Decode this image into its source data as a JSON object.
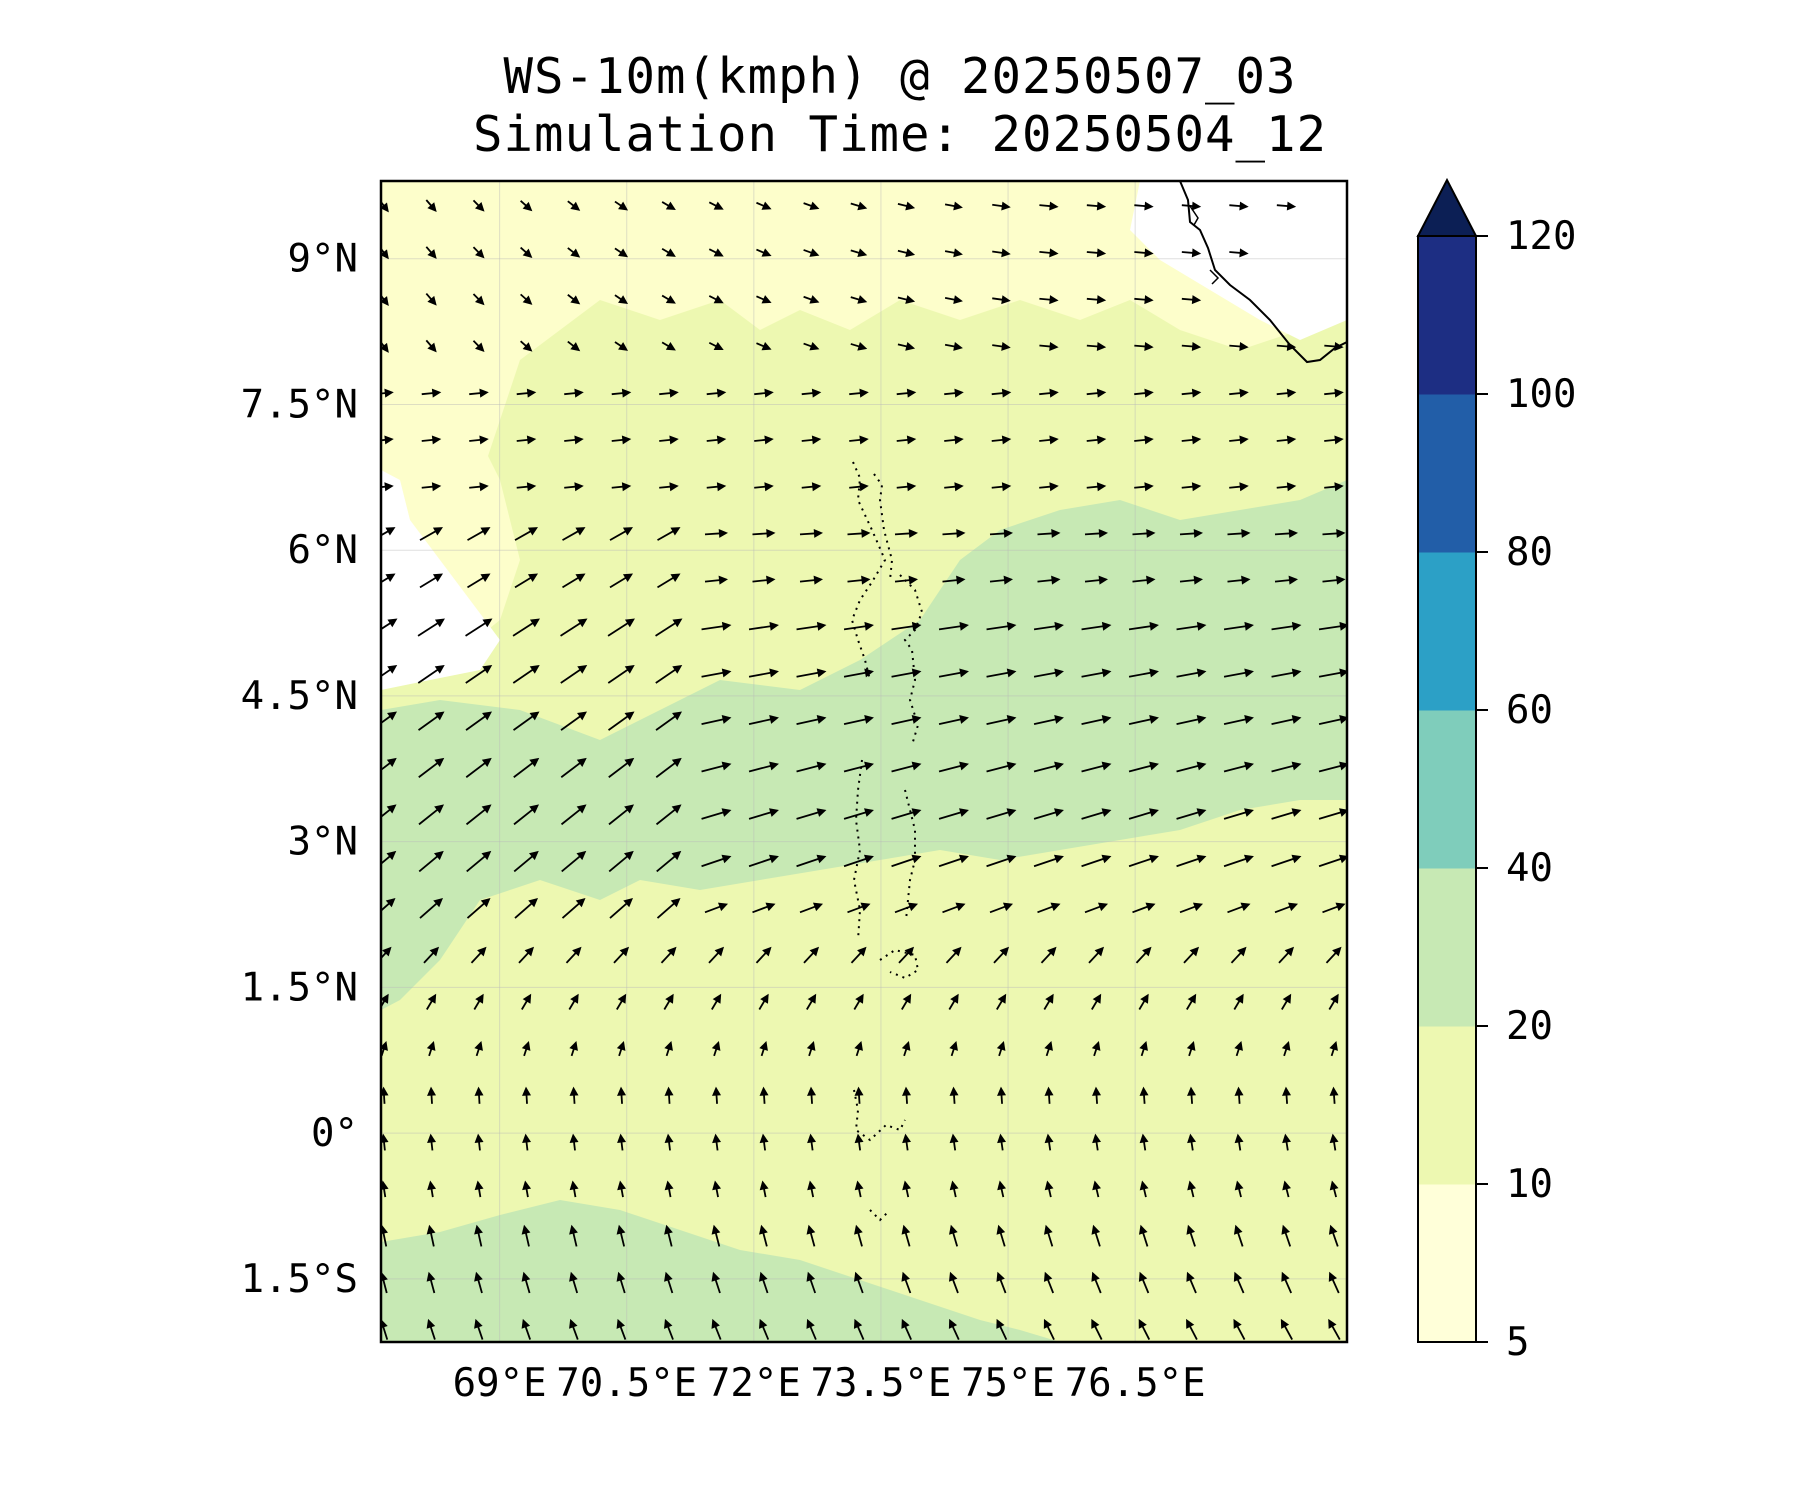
{
  "title": {
    "line1": "WS-10m(kmph) @ 20250507_03",
    "line2": "Simulation Time: 20250504_12"
  },
  "map": {
    "lon_range": [
      67.6,
      79.0
    ],
    "lat_range": [
      -2.15,
      9.8
    ],
    "lon_ticks": [
      {
        "value": 69,
        "label": "69°E"
      },
      {
        "value": 70.5,
        "label": "70.5°E"
      },
      {
        "value": 72,
        "label": "72°E"
      },
      {
        "value": 73.5,
        "label": "73.5°E"
      },
      {
        "value": 75,
        "label": "75°E"
      },
      {
        "value": 76.5,
        "label": "76.5°E"
      }
    ],
    "lat_ticks": [
      {
        "value": 9,
        "label": "9°N"
      },
      {
        "value": 7.5,
        "label": "7.5°N"
      },
      {
        "value": 6,
        "label": "6°N"
      },
      {
        "value": 4.5,
        "label": "4.5°N"
      },
      {
        "value": 3,
        "label": "3°N"
      },
      {
        "value": 1.5,
        "label": "1.5°N"
      },
      {
        "value": 0,
        "label": "0°"
      },
      {
        "value": -1.5,
        "label": "1.5°S"
      }
    ],
    "grid": true,
    "coastline": "India (Kerala) southern tip, top-right corner",
    "islands": "Maldives atolls shown as dotted outlines along 73.5°E"
  },
  "colorbar": {
    "levels": [
      5,
      10,
      20,
      40,
      60,
      80,
      100,
      120
    ],
    "labels": [
      "5",
      "10",
      "20",
      "40",
      "60",
      "80",
      "100",
      "120"
    ],
    "colors": [
      "#ffffd9",
      "#edf8b1",
      "#c7e9b4",
      "#7fcdbb",
      "#2ca0c6",
      "#225ea8",
      "#1d2e83"
    ],
    "extend_color": "#0c1f55",
    "extend": "max"
  },
  "chart_data": {
    "type": "heatmap",
    "title": "WS-10m(kmph) @ 20250507_03\nSimulation Time: 20250504_12",
    "variable": "10 m wind speed (kmph)",
    "colorbar_range": [
      5,
      120
    ],
    "regions": [
      {
        "description": "Low wind (<5 kmph, white) patches",
        "approx_area": "around 67.8-69.0°E, 4.5-7.0°N and 76.0-78.5°E, 8.5-9.8°N"
      },
      {
        "description": "Band of 20-40 kmph winds",
        "approx_area": "from 67.6°E, 1.5-4.5°N extending east-northeast to 79°E, 4-6.5°N"
      },
      {
        "description": "20-40 kmph patch",
        "approx_area": "south-west corner, 67.6-73.5°E, -2.15 to -1.0°N"
      },
      {
        "description": "Mostly 10-20 kmph",
        "approx_area": "rest of the domain"
      }
    ],
    "wind_vectors": {
      "south_of_1N": "from south / south-southeast (arrows pointing north to north-northwest)",
      "band_2N_to_6N": "from west-southwest (arrows pointing east-northeast)",
      "north_of_7N": "from northwest in the west, from west in the east"
    }
  }
}
